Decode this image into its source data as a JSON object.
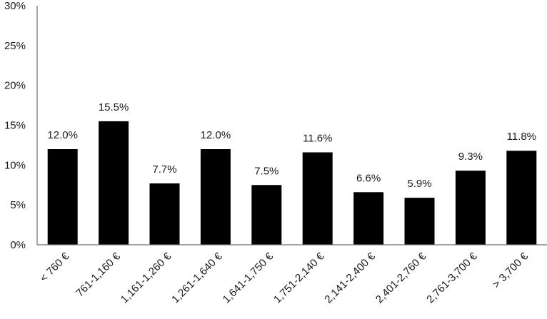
{
  "chart_data": {
    "type": "bar",
    "title": "",
    "xlabel": "",
    "ylabel": "",
    "categories": [
      "< 760 €",
      "761-1,160 €",
      "1,161-1,260 €",
      "1,261-1,640 €",
      "1,641-1,750 €",
      "1,751-2,140 €",
      "2,141-2,400 €",
      "2,401-2,760 €",
      "2,761-3,700 €",
      "> 3,700 €"
    ],
    "values": [
      12.0,
      15.5,
      7.7,
      12.0,
      7.5,
      11.6,
      6.6,
      5.9,
      9.3,
      11.8
    ],
    "value_labels": [
      "12.0%",
      "15.5%",
      "7.7%",
      "12.0%",
      "7.5%",
      "11.6%",
      "6.6%",
      "5.9%",
      "9.3%",
      "11.8%"
    ],
    "y_ticks": [
      0,
      5,
      10,
      15,
      20,
      25,
      30
    ],
    "y_tick_labels": [
      "0%",
      "5%",
      "10%",
      "15%",
      "20%",
      "25%",
      "30%"
    ],
    "ylim": [
      0,
      30
    ],
    "grid": false,
    "legend": "none",
    "bar_color": "#000000"
  }
}
